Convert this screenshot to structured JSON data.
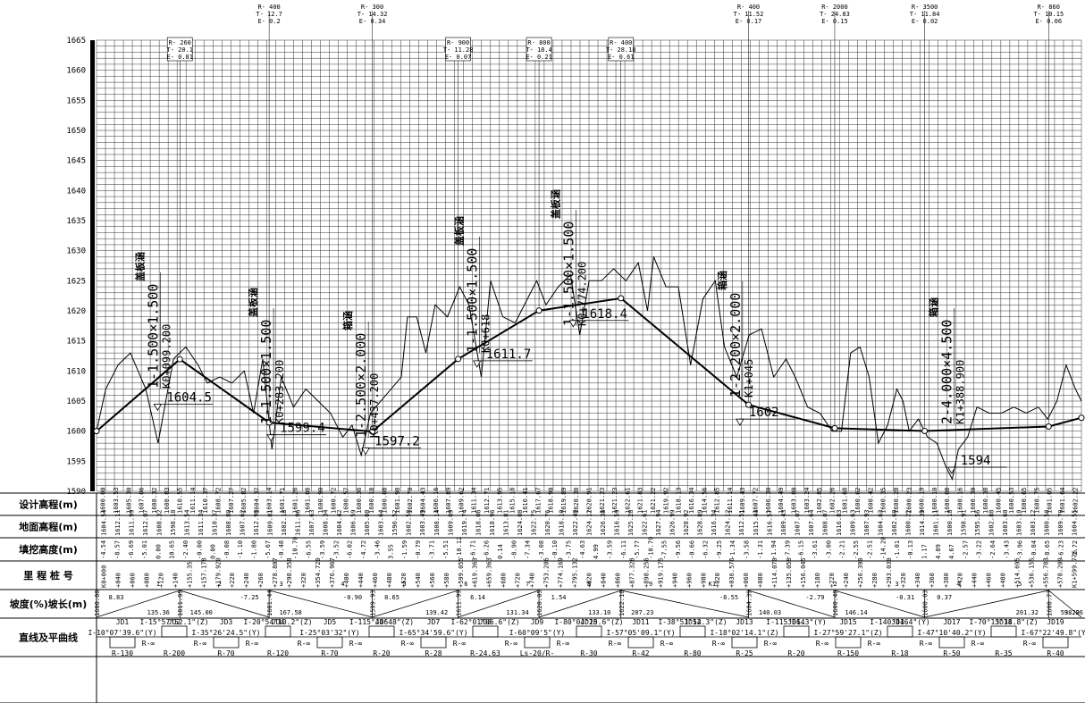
{
  "elevation_axis": {
    "ticks": [
      "1665",
      "1660",
      "1655",
      "1650",
      "1645",
      "1640",
      "1635",
      "1630",
      "1625",
      "1620",
      "1615",
      "1610",
      "1605",
      "1600",
      "1595",
      "1590"
    ]
  },
  "vertical_curves": [
    {
      "top": false,
      "lines": [
        "R- 260",
        "T- 20.1",
        "E- 0.81"
      ]
    },
    {
      "top": true,
      "lines": [
        "R- 400",
        "T- 12.7",
        "E- 0.2"
      ]
    },
    {
      "top": true,
      "lines": [
        "R- 300",
        "T- 14.32",
        "E- 0.34"
      ]
    },
    {
      "top": false,
      "lines": [
        "R- 900",
        "T- 11.28",
        "E- 0.07"
      ]
    },
    {
      "top": false,
      "lines": [
        "R- 800",
        "T- 18.4",
        "E- 0.21"
      ]
    },
    {
      "top": false,
      "lines": [
        "R- 400",
        "T- 28.18",
        "E- 0.61"
      ]
    },
    {
      "top": true,
      "lines": [
        "R- 400",
        "T- 11.52",
        "E- 0.17"
      ]
    },
    {
      "top": true,
      "lines": [
        "R- 2000",
        "T- 24.83",
        "E- 0.15"
      ]
    },
    {
      "top": true,
      "lines": [
        "R- 3500",
        "T- 11.84",
        "E- 0.02"
      ]
    },
    {
      "top": true,
      "lines": [
        "R- 860",
        "T- 10.15",
        "E- 0.06"
      ]
    }
  ],
  "culverts": [
    {
      "size": "1-1.500×1.500",
      "type": "盖板涵",
      "station": "K0+099.200"
    },
    {
      "size": "1-1.500×1.500",
      "type": "盖板涵",
      "station": "K0+283.200"
    },
    {
      "size": "1-2.500×2.000",
      "type": "箱涵",
      "station": "K0+437.200"
    },
    {
      "size": "1-1.500×1.500",
      "type": "盖板涵",
      "station": "K0+618"
    },
    {
      "size": "1-1.500×1.500",
      "type": "盖板涵",
      "station": "K0+774.200"
    },
    {
      "size": "1-2.200×2.000",
      "type": "箱涵",
      "station": "K1+045"
    },
    {
      "size": "2-4.000×4.500",
      "type": "箱涵",
      "station": "K1+388.900"
    }
  ],
  "design_elev_labels": [
    "1604.5",
    "1599.4",
    "1597.2",
    "1611.7",
    "1618.4",
    "1602",
    "1594"
  ],
  "row_labels": {
    "design": "设计高程(m)",
    "ground": "地面高程(m)",
    "fill": "填挖高度(m)",
    "station": "里 程 桩 号",
    "grade": "坡度(%)坡长(m)",
    "alignment": "直线及平曲线"
  },
  "design_values": [
    "1600.00",
    "1603.53",
    "1605.30",
    "1607.06",
    "1608.32",
    "1608.83",
    "1610.55",
    "1611.14",
    "1610.37",
    "1608.72",
    "1607.27",
    "1605.82",
    "1604.37",
    "1603.14",
    "1601.71",
    "1601.26",
    "1601.08",
    "1600.90",
    "1600.72",
    "1600.57",
    "1600.36",
    "1600.18",
    "1600.08",
    "1601.98",
    "1602.70",
    "1604.43",
    "1606.16",
    "1607.89",
    "1609.62",
    "1611.34",
    "1612.71",
    "1613.95",
    "1615.18",
    "1616.41",
    "1617.67",
    "1618.90",
    "1619.89",
    "1620.38",
    "1620.91",
    "1621.23",
    "1621.23",
    "1622.61",
    "1621.83",
    "1621.22",
    "1619.92",
    "1618.13",
    "1616.34",
    "1614.56",
    "1612.85",
    "1611.14",
    "1609.43",
    "1607.72",
    "1606.30",
    "1604.49",
    "1603.80",
    "1603.24",
    "1602.85",
    "1602.26",
    "1601.68",
    "1600.62",
    "1600.42",
    "1600.35",
    "1600.28",
    "1600.23",
    "1600.19",
    "1600.10",
    "1600.08",
    "1600.16",
    "1600.30",
    "1600.38",
    "1600.45",
    "1600.53",
    "1600.65",
    "1600.75",
    "1601.05",
    "1601.64",
    "1602.22"
  ],
  "ground_values": [
    "1604.54",
    "1612.11",
    "1611.99",
    "1612.07",
    "1608.32",
    "1598.18",
    "1613.54",
    "1611.34",
    "1610.37",
    "1608.80",
    "1607.62",
    "1612.98",
    "1609.81",
    "1602.18",
    "1611.96",
    "1607.63",
    "1608.34",
    "1604.42",
    "1606.59",
    "1605.08",
    "1603.64",
    "1596.52",
    "1602.58",
    "1603.49",
    "1608.14",
    "1609.09",
    "1619.74",
    "1618.06",
    "1618.96",
    "1613.81",
    "1624.08",
    "1622.75",
    "1620.76",
    "1618.10",
    "1622.40",
    "1624.12",
    "1626.38",
    "1616.59",
    "1625.28",
    "1622.61",
    "1627.94",
    "1626.99",
    "1628.92",
    "1628.89",
    "1616.34",
    "1624.12",
    "1612.51",
    "1615.44",
    "1616.57",
    "1609.43",
    "1607.07",
    "1607.64",
    "1608.07",
    "1616.83",
    "1609.63",
    "1607.93",
    "1604.63",
    "1602.60",
    "1600.22",
    "1614.39",
    "1601.11",
    "1600.18",
    "1598.91",
    "1595.56",
    "1602.88",
    "1603.60",
    "1603.10",
    "1603.12",
    "1600.58",
    "1609.70",
    "1604.55"
  ],
  "fill_values": [
    "-4.54",
    "-8.57",
    "-6.69",
    "-5.01",
    "0.00",
    "10.65",
    "-2.40",
    "-0.00",
    "0.00",
    "-0.08",
    "-1.10",
    "-1.80",
    "-5.67",
    "-0.48",
    "-10.70",
    "-6.55",
    "-3.59",
    "-3.52",
    "-6.02",
    "-4.72",
    "-3.46",
    "3.55",
    "-1.59",
    "-0.79",
    "-3.71",
    "-5.51",
    "-10.12",
    "-6.71",
    "-6.26",
    "0.14",
    "-8.90",
    "-7.34",
    "-3.08",
    "-0.10",
    "-3.75",
    "-4.63",
    "4.99",
    "-3.59",
    "-6.11",
    "-5.77",
    "-10.79",
    "-7.55",
    "-9.56",
    "-0.66",
    "-6.32",
    "-9.25",
    "-1.34",
    "-3.58",
    "-1.31",
    "-1.94",
    "-7.39",
    "-6.15",
    "-3.61",
    "-3.00",
    "-2.21",
    "-2.55",
    "-2.51",
    "-14.20",
    "-1.01",
    "-0.13",
    "1.17",
    "4.89",
    "4.67",
    "-2.57",
    "-3.22",
    "-2.64",
    "-3.43",
    "-3.96",
    "-0.84",
    "-8.65",
    "-6.23",
    "-2.72"
  ],
  "stations": [
    "K0+000",
    "+040",
    "+060",
    "+080",
    "+120",
    "+140",
    "+155.35",
    "+157.178",
    "+179.920",
    "+220",
    "+240",
    "+260",
    "+278.807",
    "+298.358",
    "+320",
    "+354.720",
    "+376.967",
    "+400",
    "+440",
    "+460",
    "+480",
    "+520",
    "+540",
    "+560",
    "+580",
    "+599.055",
    "+619.363",
    "+659.363",
    "+680",
    "+720",
    "+740",
    "+753.206",
    "+774.169",
    "+795.132",
    "+820",
    "+840",
    "+860",
    "+877.328",
    "+898.256",
    "+919.175",
    "+940",
    "+960",
    "+980",
    "+020",
    "+036.576",
    "+060",
    "+080",
    "+114.070",
    "+135.058",
    "+156.045",
    "+180",
    "+220",
    "+240",
    "+256.390",
    "+280",
    "+293.030",
    "+320",
    "+340",
    "+360",
    "+380",
    "+420",
    "+440",
    "+460",
    "+480",
    "+514.695",
    "+536.155",
    "+556.783",
    "+578.209",
    "K1+599.776"
  ],
  "station_marks": [
    "1",
    "2",
    "3",
    "4",
    "5",
    "6",
    "7",
    "8",
    "9",
    "K1",
    "2",
    "3",
    "4",
    "5"
  ],
  "grades": [
    {
      "grade": "8.83",
      "length": "135.36",
      "pvi": "1600.00"
    },
    {
      "grade": "-7.25",
      "length": "145.00",
      "pvi": "1611.95"
    },
    {
      "grade": "-0.90",
      "length": "167.58",
      "pvi": "1601.44"
    },
    {
      "grade": "8.65",
      "length": "139.42",
      "pvi": "1599.93"
    },
    {
      "grade": "6.14",
      "length": "131.34",
      "pvi": "1611.99"
    },
    {
      "grade": "1.54",
      "length": "133.10",
      "pvi": "1620.05"
    },
    {
      "grade": "-8.55",
      "length": "207.23",
      "pvi": "1622.10"
    },
    {
      "grade": "-2.79",
      "length": "140.03",
      "pvi": "1604.39"
    },
    {
      "grade": "-0.31",
      "length": "146.14",
      "pvi": "1600.48"
    },
    {
      "grade": "0.37",
      "length": "201.32",
      "pvi": "1600.03"
    },
    {
      "grade": "",
      "length": "53.20",
      "pvi": "1600.77"
    }
  ],
  "grade_total": "98.26",
  "alignment": [
    {
      "jd": "JD1",
      "text": "I-10°07'39.6\"(Y)",
      "r": "R-130"
    },
    {
      "jd": "JD2",
      "text": "I-15°57'52.1\"(Z)",
      "r": "R-200"
    },
    {
      "jd": "JD3",
      "text": "I-35°26'24.5\"(Y)",
      "r": "R-70"
    },
    {
      "jd": "JD4",
      "text": "I-20°54'10.2\"(Z)",
      "r": "R-120"
    },
    {
      "jd": "JD5",
      "text": "I-25°03'32\"(Y)",
      "r": "R-70"
    },
    {
      "jd": "JD6",
      "text": "I-115°44'48\"(Z)",
      "r": "R-20"
    },
    {
      "jd": "JD7",
      "text": "I-65°34'59.6\"(Y)",
      "r": "R-28"
    },
    {
      "jd": "JD8",
      "text": "I-62°01'06.6\"(Z)",
      "r": "R-24.63"
    },
    {
      "jd": "JD9",
      "text": "I-60°09'5\"(Y)",
      "r": "Ls-20/R-"
    },
    {
      "jd": "JD10",
      "text": "I-80°04'25.6\"(Z)",
      "r": "R-30"
    },
    {
      "jd": "JD11",
      "text": "I-57°05'09.1\"(Y)",
      "r": "R-42"
    },
    {
      "jd": "JD12",
      "text": "I-38°51'54.3\"(Z)",
      "r": "R-80"
    },
    {
      "jd": "JD13",
      "text": "I-18°02'14.1\"(Z)",
      "r": "R-25"
    },
    {
      "jd": "JD14",
      "text": "I-115°06.3\"(Y)",
      "r": "R-20"
    },
    {
      "jd": "JD15",
      "text": "I-27°59'27.1\"(Z)",
      "r": "R-150"
    },
    {
      "jd": "JD16",
      "text": "I-140°44.4\"(Y)",
      "r": "R-18"
    },
    {
      "jd": "JD17",
      "text": "I-47°10'40.2\"(Y)",
      "r": "R-50"
    },
    {
      "jd": "JD18",
      "text": "I-70°15'34.8\"(Z)",
      "r": "R-35"
    },
    {
      "jd": "JD19",
      "text": "I-67°22'49.8\"(Y)",
      "r": "R-40"
    }
  ],
  "alignment_rinf": "R-∞"
}
